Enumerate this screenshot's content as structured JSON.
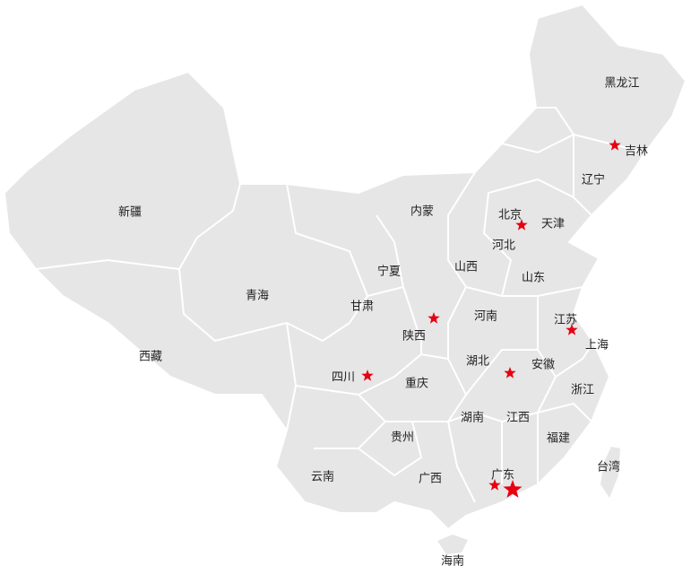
{
  "colors": {
    "land": "#e6e6e6",
    "border": "#ffffff",
    "star": "#e60012"
  },
  "provinces": [
    {
      "id": "heilongjiang",
      "name": "黑龙江"
    },
    {
      "id": "jilin",
      "name": "吉林",
      "star": true
    },
    {
      "id": "liaoning",
      "name": "辽宁"
    },
    {
      "id": "xinjiang",
      "name": "新疆"
    },
    {
      "id": "neimeng",
      "name": "内蒙"
    },
    {
      "id": "beijing",
      "name": "北京",
      "star": true
    },
    {
      "id": "tianjin",
      "name": "天津"
    },
    {
      "id": "hebei",
      "name": "河北"
    },
    {
      "id": "ningxia",
      "name": "宁夏"
    },
    {
      "id": "shanxi",
      "name": "山西"
    },
    {
      "id": "shandong",
      "name": "山东"
    },
    {
      "id": "qinghai",
      "name": "青海"
    },
    {
      "id": "gansu",
      "name": "甘肃"
    },
    {
      "id": "henan",
      "name": "河南"
    },
    {
      "id": "jiangsu",
      "name": "江苏",
      "star": true
    },
    {
      "id": "shaanxi",
      "name": "陕西",
      "star": true
    },
    {
      "id": "shanghai",
      "name": "上海"
    },
    {
      "id": "xizang",
      "name": "西藏"
    },
    {
      "id": "sichuan",
      "name": "四川",
      "star": true
    },
    {
      "id": "hubei",
      "name": "湖北",
      "star": true
    },
    {
      "id": "anhui",
      "name": "安徽"
    },
    {
      "id": "chongqing",
      "name": "重庆"
    },
    {
      "id": "zhejiang",
      "name": "浙江"
    },
    {
      "id": "hunan",
      "name": "湖南"
    },
    {
      "id": "jiangxi",
      "name": "江西"
    },
    {
      "id": "guizhou",
      "name": "贵州"
    },
    {
      "id": "fujian",
      "name": "福建"
    },
    {
      "id": "taiwan",
      "name": "台湾"
    },
    {
      "id": "yunnan",
      "name": "云南"
    },
    {
      "id": "guangxi",
      "name": "广西"
    },
    {
      "id": "guangdong",
      "name": "广东",
      "star": true,
      "major_star": true
    },
    {
      "id": "hainan",
      "name": "海南"
    }
  ]
}
